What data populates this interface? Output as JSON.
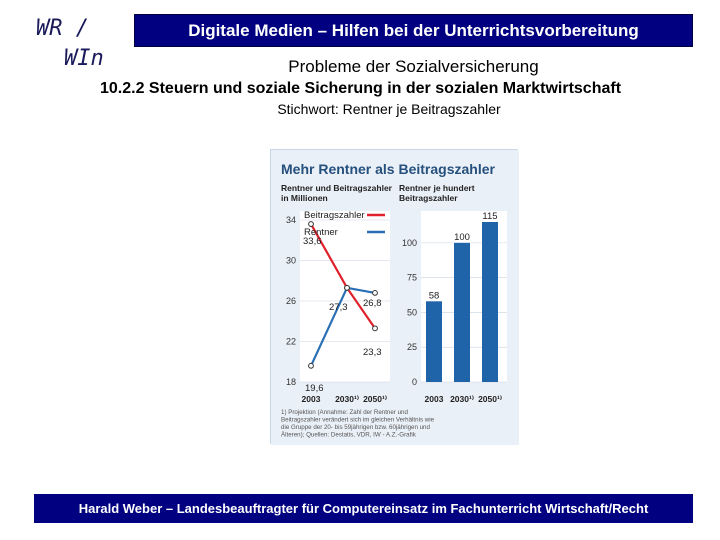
{
  "logo": {
    "line1": "WR /",
    "line2": "WIn"
  },
  "header": {
    "title": "Digitale Medien – Hilfen bei der Unterrichtsvorbereitung"
  },
  "subtitle": "Probleme der Sozialversicherung",
  "section": "10.2.2  Steuern und soziale Sicherung in der sozialen Marktwirtschaft",
  "keyword": "Stichwort: Rentner je Beitragszahler",
  "footer": "Harald Weber – Landesbeauftragter für Computereinsatz im Fachunterricht Wirtschaft/Recht",
  "colors": {
    "header_bg": "#000080",
    "payers": "#e0202a",
    "pensioners": "#2a6fb5",
    "bars": "#1f63a8",
    "chart_bg": "#eaf0f7"
  },
  "chart_data": [
    {
      "type": "line",
      "title": "Mehr Rentner als Beitragszahler",
      "panel_label": "Rentner und Beitragszahler in Millionen",
      "categories": [
        "2003",
        "2030¹⁾",
        "2050¹⁾"
      ],
      "ylim": [
        18,
        34
      ],
      "yticks": [
        "34",
        "30",
        "26",
        "22",
        "18"
      ],
      "series": [
        {
          "name": "Beitragszahler",
          "values": [
            33.6,
            27.3,
            23.3
          ],
          "value_labels": [
            "33,6",
            "27,3",
            "23,3"
          ]
        },
        {
          "name": "Rentner",
          "values": [
            19.6,
            27.3,
            26.8
          ],
          "value_labels": [
            "19,6",
            "",
            "26,8"
          ]
        }
      ]
    },
    {
      "type": "bar",
      "panel_label": "Rentner je hundert Beitragszahler",
      "categories": [
        "2003",
        "2030¹⁾",
        "2050¹⁾"
      ],
      "values": [
        58,
        100,
        115
      ],
      "ylim": [
        0,
        115
      ],
      "yticks": [
        "100",
        "75",
        "50",
        "25",
        "0"
      ]
    }
  ],
  "chart_footnote": "1) Projektion (Annahme: Zahl der Rentner und Beitragszahler verändert sich im gleichen Verhältnis wie die Gruppe der 20- bis 59jährigen bzw. 60jährigen und Älteren); Quellen: Destatis, VDR, IW - A.Z.-Grafik Brocker"
}
